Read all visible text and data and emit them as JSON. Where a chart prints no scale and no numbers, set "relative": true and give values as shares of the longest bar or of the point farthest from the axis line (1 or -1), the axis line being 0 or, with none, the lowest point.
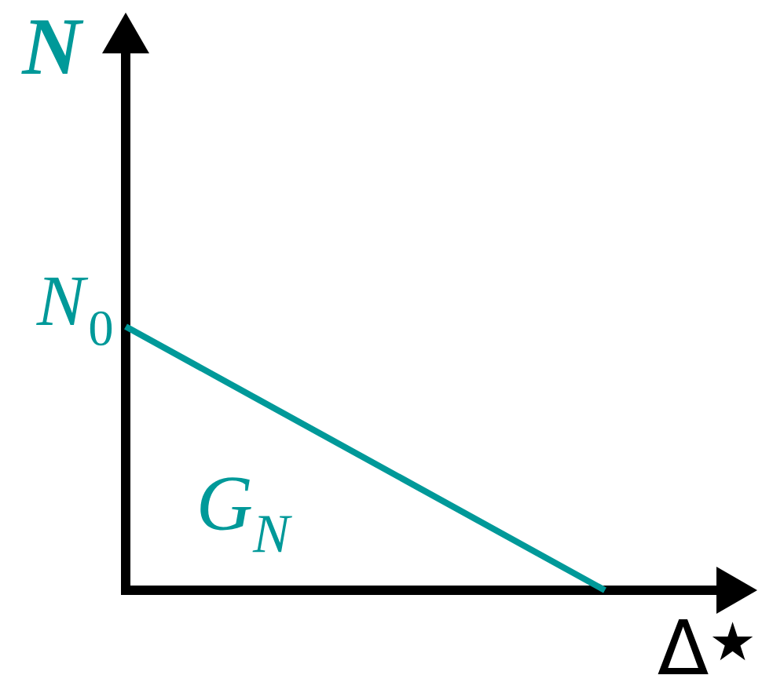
{
  "chart_data": {
    "type": "line",
    "xlabel": "Δ$^{★}$",
    "ylabel": "N",
    "categories": [
      null,
      null
    ],
    "series": [
      {
        "color": "#009999",
        "values": [
          1,
          0
        ]
      }
    ],
    "relative": true,
    "line_style": "solid",
    "annotations": [
      "*N*$_{0}$",
      "G$_{N}$"
    ]
  }
}
